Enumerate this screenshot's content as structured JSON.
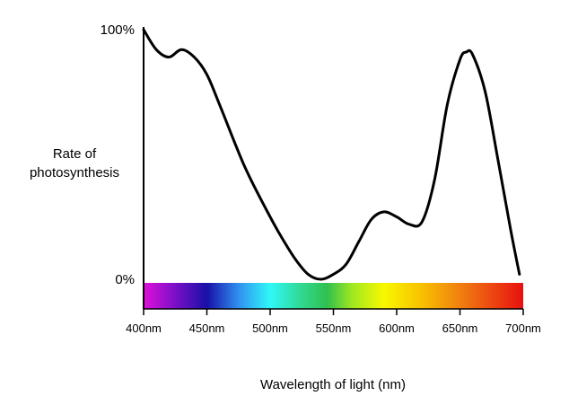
{
  "chart_data": {
    "type": "line",
    "title": "",
    "xlabel": "Wavelength of light (nm)",
    "ylabel_lines": [
      "Rate of",
      "photosynthesis"
    ],
    "xlim": [
      400,
      700
    ],
    "ylim": [
      0,
      100
    ],
    "x_ticks": [
      {
        "value": 400,
        "label": "400nm"
      },
      {
        "value": 450,
        "label": "450nm"
      },
      {
        "value": 500,
        "label": "500nm"
      },
      {
        "value": 550,
        "label": "550nm"
      },
      {
        "value": 600,
        "label": "600nm"
      },
      {
        "value": 650,
        "label": "650nm"
      },
      {
        "value": 700,
        "label": "700nm"
      }
    ],
    "y_ticks": [
      {
        "value": 100,
        "label": "100%"
      },
      {
        "value": 0,
        "label": "0%"
      }
    ],
    "series": [
      {
        "color": "#000000",
        "points": [
          [
            400,
            100
          ],
          [
            410,
            92
          ],
          [
            420,
            89
          ],
          [
            430,
            92
          ],
          [
            440,
            89
          ],
          [
            450,
            82
          ],
          [
            460,
            70
          ],
          [
            480,
            45
          ],
          [
            500,
            25
          ],
          [
            510,
            16
          ],
          [
            520,
            8
          ],
          [
            530,
            2
          ],
          [
            540,
            0
          ],
          [
            550,
            2
          ],
          [
            560,
            6
          ],
          [
            570,
            15
          ],
          [
            580,
            24
          ],
          [
            590,
            27
          ],
          [
            600,
            25
          ],
          [
            610,
            22
          ],
          [
            620,
            23
          ],
          [
            630,
            40
          ],
          [
            640,
            70
          ],
          [
            650,
            88
          ],
          [
            655,
            91
          ],
          [
            660,
            90
          ],
          [
            670,
            75
          ],
          [
            680,
            48
          ],
          [
            690,
            20
          ],
          [
            697,
            2
          ]
        ]
      }
    ],
    "spectrum_stops": [
      {
        "nm": 400,
        "color": "#e010d8"
      },
      {
        "nm": 425,
        "color": "#7a10c8"
      },
      {
        "nm": 450,
        "color": "#1810a8"
      },
      {
        "nm": 475,
        "color": "#3090f0"
      },
      {
        "nm": 500,
        "color": "#30f8f8"
      },
      {
        "nm": 525,
        "color": "#30d890"
      },
      {
        "nm": 545,
        "color": "#30c050"
      },
      {
        "nm": 565,
        "color": "#a0e820"
      },
      {
        "nm": 590,
        "color": "#f8f800"
      },
      {
        "nm": 620,
        "color": "#f8c000"
      },
      {
        "nm": 650,
        "color": "#f08010"
      },
      {
        "nm": 700,
        "color": "#e81010"
      }
    ]
  }
}
